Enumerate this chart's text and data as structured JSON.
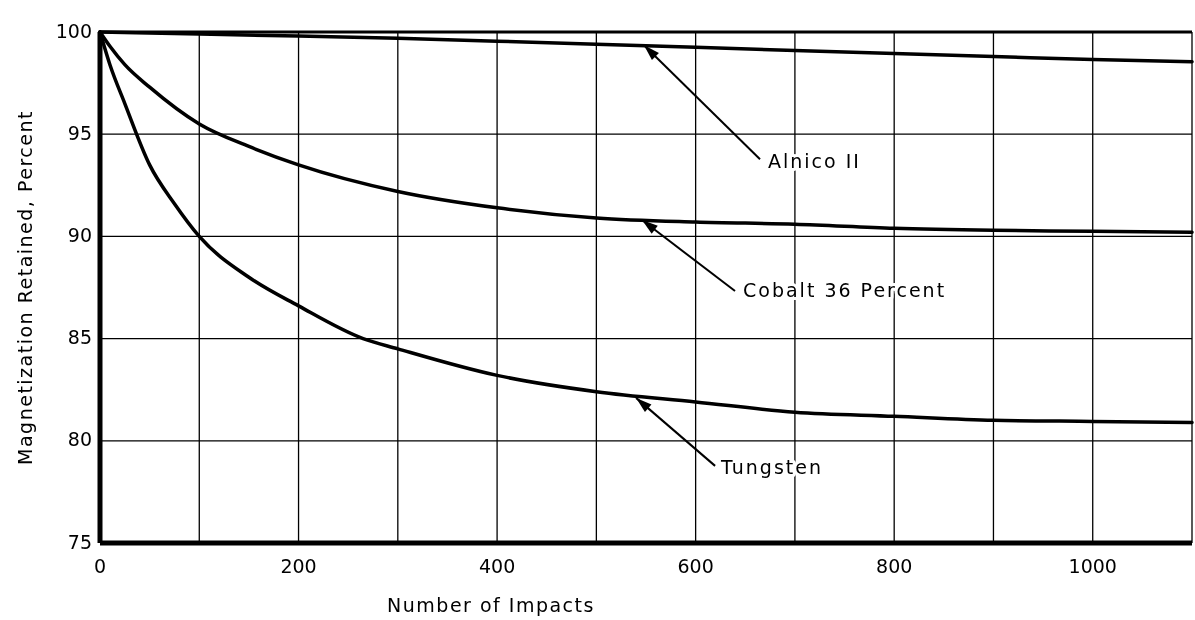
{
  "chart_data": {
    "type": "line",
    "xlabel": "Number of Impacts",
    "ylabel": "Magnetization Retained, Percent",
    "xlim": [
      0,
      1100
    ],
    "ylim": [
      75,
      100
    ],
    "xticks": [
      0,
      {
        "value": 100,
        "label": null
      },
      200,
      {
        "value": 300,
        "label": null
      },
      400,
      {
        "value": 500,
        "label": null
      },
      600,
      {
        "value": 700,
        "label": null
      },
      800,
      {
        "value": 900,
        "label": null
      },
      1000,
      {
        "value": 1100,
        "label": null
      }
    ],
    "yticks": [
      75,
      80,
      85,
      90,
      95,
      100
    ],
    "grid": true,
    "marker": "none",
    "line_style": "solid",
    "series": [
      {
        "color": "#000000",
        "x": [
          0,
          100,
          200,
          300,
          400,
          500,
          600,
          700,
          800,
          900,
          1000,
          1100
        ],
        "values": [
          100,
          99.9,
          99.8,
          99.7,
          99.55,
          99.4,
          99.25,
          99.1,
          98.95,
          98.8,
          98.65,
          98.55
        ]
      },
      {
        "color": "#000000",
        "x": [
          0,
          10,
          25,
          50,
          100,
          150,
          200,
          300,
          400,
          500,
          600,
          700,
          800,
          900,
          1000,
          1100
        ],
        "values": [
          100,
          99.3,
          98.4,
          97.3,
          95.5,
          94.4,
          93.5,
          92.2,
          91.4,
          90.9,
          90.7,
          90.6,
          90.4,
          90.3,
          90.25,
          90.2
        ]
      },
      {
        "color": "#000000",
        "x": [
          0,
          10,
          25,
          50,
          75,
          100,
          150,
          200,
          265,
          300,
          400,
          500,
          600,
          700,
          800,
          900,
          1000,
          1100
        ],
        "values": [
          100,
          98.4,
          96.5,
          93.5,
          91.6,
          90,
          88,
          86.6,
          85,
          84.5,
          83.2,
          82.4,
          81.9,
          81.4,
          81.2,
          81,
          80.95,
          80.9
        ]
      }
    ],
    "annotations": [
      {
        "text": "Alnico II",
        "x": 548,
        "y": 99.35
      },
      {
        "text": "Cobalt 36 Percent",
        "x": 546,
        "y": 90.8
      },
      {
        "text": "Tungsten",
        "x": 540,
        "y": 82.1
      }
    ]
  }
}
